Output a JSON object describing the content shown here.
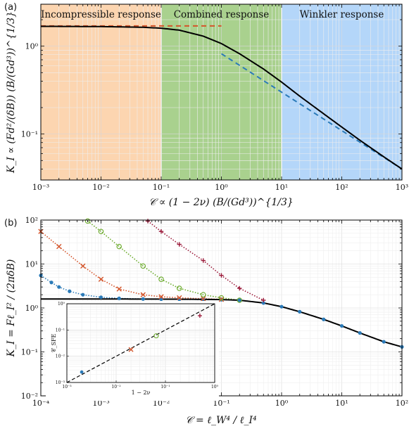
{
  "chart_data": [
    {
      "panel": "(a)",
      "type": "line",
      "xscale": "log",
      "yscale": "log",
      "xlim": [
        0.001,
        1000
      ],
      "ylim": [
        0.03,
        3
      ],
      "xlabel": "𝒞 ∝ (1 − 2ν) (B/(Gd³))^{1/3}",
      "ylabel": "K_I ∝ (Fd²/(δB)) (B/(Gd³))^{1/3}",
      "x_tick_labels": [
        "10⁻³",
        "10⁻²",
        "10⁻¹",
        "10⁰",
        "10¹",
        "10²",
        "10³"
      ],
      "x_ticks": [
        0.001,
        0.01,
        0.1,
        1,
        10,
        100,
        1000
      ],
      "y_tick_labels": [
        "10⁻¹",
        "10⁰"
      ],
      "y_ticks": [
        0.1,
        1
      ],
      "regions": [
        {
          "label": "Incompressible response",
          "x": [
            0.001,
            0.1
          ],
          "color": "#fcd5b0"
        },
        {
          "label": "Combined response",
          "x": [
            0.1,
            10
          ],
          "color": "#a9d18e"
        },
        {
          "label": "Winkler response",
          "x": [
            10,
            1000
          ],
          "color": "#b4d6f9"
        }
      ],
      "series": [
        {
          "style": "solid",
          "color": "#000000",
          "x": [
            0.001,
            0.01,
            0.05,
            0.1,
            0.2,
            0.5,
            1,
            2,
            5,
            10,
            20,
            50,
            100,
            200,
            500,
            1000
          ],
          "y": [
            1.68,
            1.67,
            1.64,
            1.6,
            1.52,
            1.3,
            1.07,
            0.82,
            0.55,
            0.39,
            0.27,
            0.17,
            0.12,
            0.085,
            0.055,
            0.04
          ]
        },
        {
          "style": "dashed",
          "color": "#d4542a",
          "x": [
            0.001,
            1
          ],
          "y": [
            1.7,
            1.7
          ]
        },
        {
          "style": "dashed",
          "color": "#2a7ab8",
          "x": [
            1,
            1000
          ],
          "y": [
            0.82,
            0.04
          ]
        }
      ]
    },
    {
      "panel": "(b)",
      "type": "scatter",
      "xscale": "log",
      "yscale": "log",
      "xlim": [
        0.0001,
        100
      ],
      "ylim": [
        0.01,
        100
      ],
      "xlabel": "𝒞 = ℓ_W⁴ / ℓ_I⁴",
      "ylabel": "K_I = Fℓ_I² / (2πδB)",
      "x_tick_labels": [
        "10⁻⁴",
        "10⁻³",
        "10⁻²",
        "10⁻¹",
        "10⁰",
        "10¹",
        "10²"
      ],
      "x_ticks": [
        0.0001,
        0.001,
        0.01,
        0.1,
        1,
        10,
        100
      ],
      "y_tick_labels": [
        "10⁻²",
        "10⁻¹",
        "10⁰",
        "10¹",
        "10²"
      ],
      "y_ticks": [
        0.01,
        0.1,
        1,
        10,
        100
      ],
      "theory_curve": {
        "color": "#000000",
        "x": [
          0.0001,
          0.001,
          0.01,
          0.05,
          0.1,
          0.2,
          0.5,
          1,
          2,
          5,
          10,
          20,
          50,
          100
        ],
        "y": [
          1.6,
          1.6,
          1.59,
          1.57,
          1.55,
          1.5,
          1.3,
          1.07,
          0.82,
          0.55,
          0.39,
          0.27,
          0.17,
          0.13
        ]
      },
      "series": [
        {
          "marker": "circle",
          "color": "#2a7ab8",
          "x": [
            0.0001,
            0.00015,
            0.0002,
            0.0003,
            0.0005,
            0.001,
            0.002,
            0.005,
            0.01,
            0.02,
            0.05,
            0.1,
            0.2,
            0.5,
            1,
            2,
            5,
            10,
            20,
            50,
            100
          ],
          "y": [
            5.5,
            3.8,
            3.0,
            2.4,
            2.0,
            1.75,
            1.65,
            1.6,
            1.58,
            1.57,
            1.56,
            1.54,
            1.5,
            1.3,
            1.07,
            0.82,
            0.55,
            0.39,
            0.27,
            0.17,
            0.13
          ]
        },
        {
          "marker": "x",
          "color": "#d4542a",
          "x": [
            0.0001,
            0.0002,
            0.0005,
            0.001,
            0.002,
            0.005,
            0.01,
            0.02,
            0.05,
            0.1
          ],
          "y": [
            55,
            25,
            9,
            4.5,
            2.7,
            2.0,
            1.8,
            1.7,
            1.62,
            1.57
          ]
        },
        {
          "marker": "open-circle",
          "color": "#6aaa2a",
          "x": [
            0.0006,
            0.001,
            0.002,
            0.005,
            0.01,
            0.02,
            0.05,
            0.1,
            0.2
          ],
          "y": [
            95,
            55,
            25,
            9,
            4.5,
            2.8,
            2.0,
            1.7,
            1.5
          ]
        },
        {
          "marker": "plus",
          "color": "#9b1a3a",
          "x": [
            0.006,
            0.01,
            0.02,
            0.05,
            0.1,
            0.2,
            0.5
          ],
          "y": [
            95,
            55,
            28,
            12,
            5.5,
            2.8,
            1.5
          ]
        }
      ],
      "inset": {
        "xscale": "log",
        "yscale": "log",
        "xlim": [
          0.001,
          1
        ],
        "ylim": [
          0.001,
          1
        ],
        "xlabel": "1 − 2ν",
        "ylabel": "𝒞_SFE",
        "x_tick_labels": [
          "10⁻³",
          "10⁻²",
          "10⁻¹",
          "10⁰"
        ],
        "y_tick_labels": [
          "10⁻³",
          "10⁻²",
          "10⁻¹",
          "10⁰"
        ],
        "line": {
          "x": [
            0.001,
            1
          ],
          "y": [
            0.001,
            1
          ]
        },
        "points": [
          {
            "marker": "circle",
            "color": "#2a7ab8",
            "x": 0.002,
            "y": 0.0025
          },
          {
            "marker": "x",
            "color": "#d4542a",
            "x": 0.02,
            "y": 0.018
          },
          {
            "marker": "open-circle",
            "color": "#6aaa2a",
            "x": 0.065,
            "y": 0.06
          },
          {
            "marker": "plus",
            "color": "#9b1a3a",
            "x": 0.5,
            "y": 0.35
          }
        ]
      }
    }
  ]
}
